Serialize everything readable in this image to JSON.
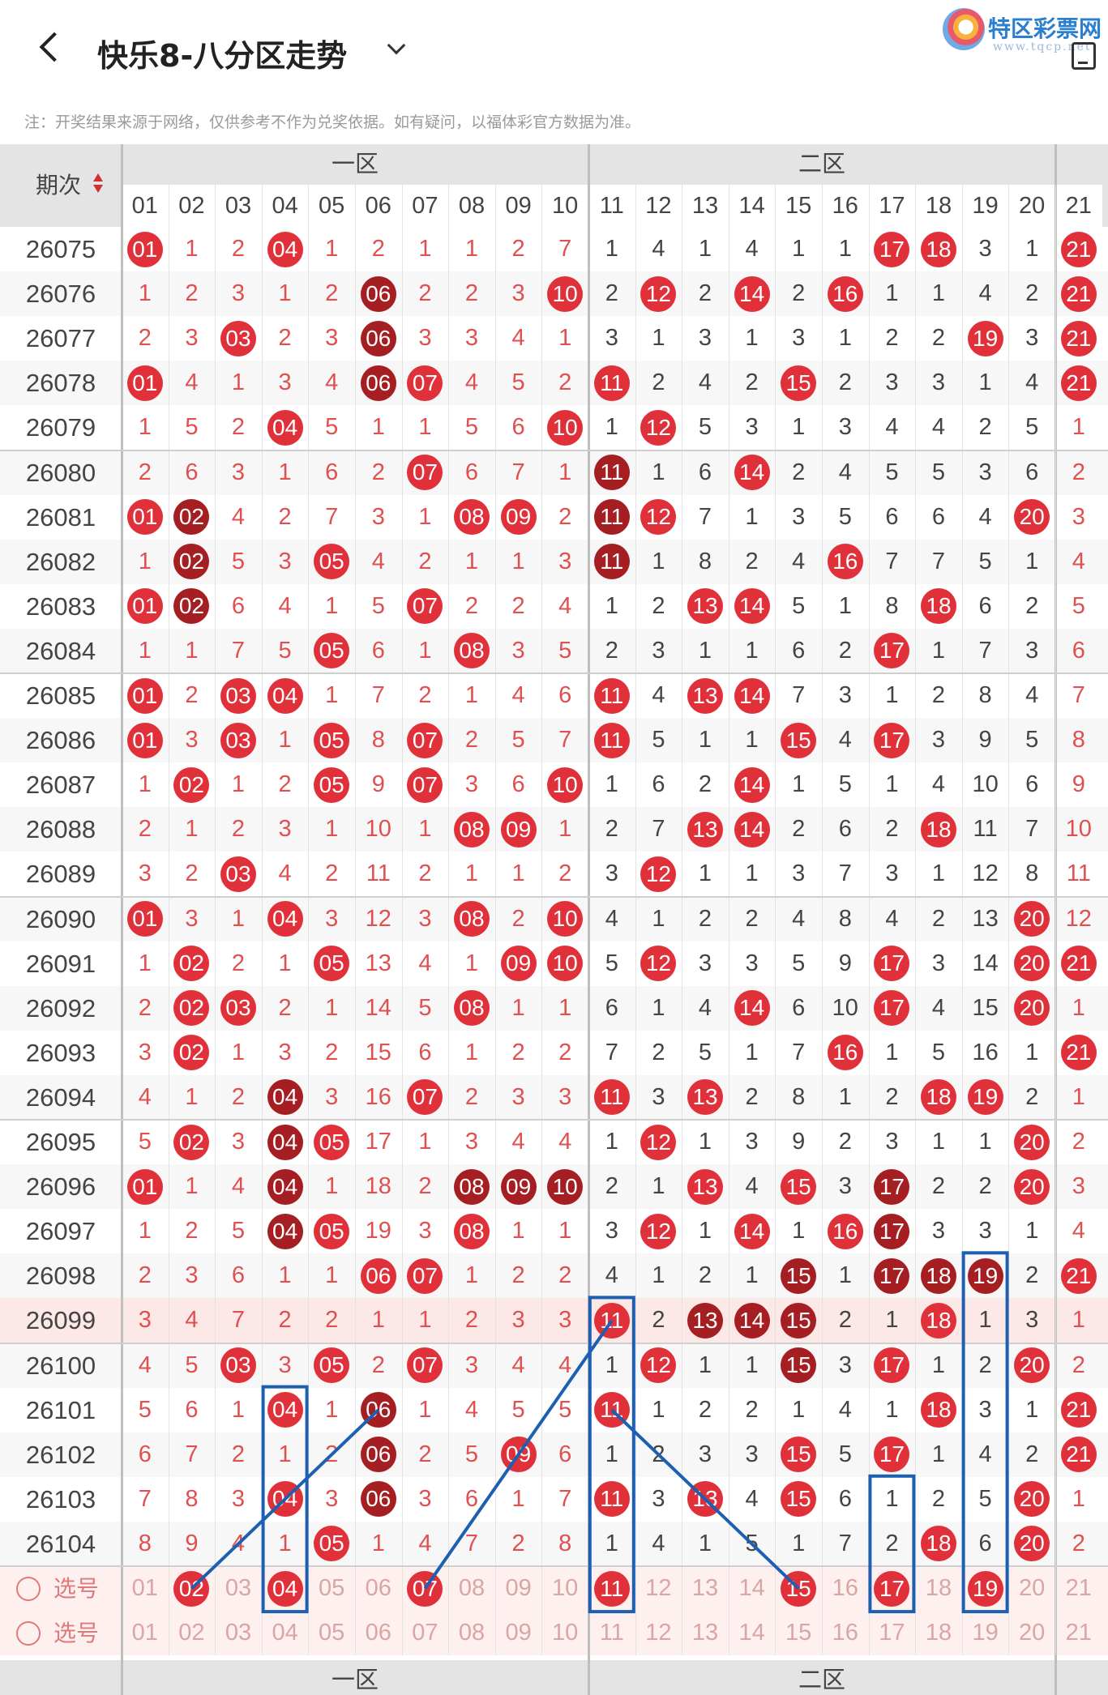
{
  "header": {
    "title": "快乐8-八分区走势",
    "note": "注：开奖结果来源于网络，仅供参考不作为兑奖依据。如有疑问，以福体彩官方数据为准。",
    "logo_text": "特区彩票网",
    "logo_url": "www.tqcp.net"
  },
  "table": {
    "period_header": "期次",
    "zones": [
      "一区",
      "二区"
    ],
    "columns": [
      "01",
      "02",
      "03",
      "04",
      "05",
      "06",
      "07",
      "08",
      "09",
      "10",
      "11",
      "12",
      "13",
      "14",
      "15",
      "16",
      "17",
      "18",
      "19",
      "20",
      "21"
    ],
    "rows": [
      {
        "period": "26075",
        "cells": [
          "01",
          "1",
          "2",
          "04",
          "1",
          "2",
          "1",
          "1",
          "2",
          "7",
          "1",
          "4",
          "1",
          "4",
          "1",
          "1",
          "17",
          "18",
          "3",
          "1",
          "21"
        ]
      },
      {
        "period": "26076",
        "cells": [
          "1",
          "2",
          "3",
          "1",
          "2",
          "06",
          "2",
          "2",
          "3",
          "10",
          "2",
          "12",
          "2",
          "14",
          "2",
          "16",
          "1",
          "1",
          "4",
          "2",
          "21"
        ]
      },
      {
        "period": "26077",
        "cells": [
          "2",
          "3",
          "03",
          "2",
          "3",
          "06",
          "3",
          "3",
          "4",
          "1",
          "3",
          "1",
          "3",
          "1",
          "3",
          "1",
          "2",
          "2",
          "19",
          "3",
          "21"
        ]
      },
      {
        "period": "26078",
        "cells": [
          "01",
          "4",
          "1",
          "3",
          "4",
          "06",
          "07",
          "4",
          "5",
          "2",
          "11",
          "2",
          "4",
          "2",
          "15",
          "2",
          "3",
          "3",
          "1",
          "4",
          "21"
        ]
      },
      {
        "period": "26079",
        "cells": [
          "1",
          "5",
          "2",
          "04",
          "5",
          "1",
          "1",
          "5",
          "6",
          "10",
          "1",
          "12",
          "5",
          "3",
          "1",
          "3",
          "4",
          "4",
          "2",
          "5",
          "1"
        ]
      },
      {
        "period": "26080",
        "cells": [
          "2",
          "6",
          "3",
          "1",
          "6",
          "2",
          "07",
          "6",
          "7",
          "1",
          "11",
          "1",
          "6",
          "14",
          "2",
          "4",
          "5",
          "5",
          "3",
          "6",
          "2"
        ]
      },
      {
        "period": "26081",
        "cells": [
          "01",
          "02",
          "4",
          "2",
          "7",
          "3",
          "1",
          "08",
          "09",
          "2",
          "11",
          "12",
          "7",
          "1",
          "3",
          "5",
          "6",
          "6",
          "4",
          "20",
          "3"
        ]
      },
      {
        "period": "26082",
        "cells": [
          "1",
          "02",
          "5",
          "3",
          "05",
          "4",
          "2",
          "1",
          "1",
          "3",
          "11",
          "1",
          "8",
          "2",
          "4",
          "16",
          "7",
          "7",
          "5",
          "1",
          "4"
        ]
      },
      {
        "period": "26083",
        "cells": [
          "01",
          "02",
          "6",
          "4",
          "1",
          "5",
          "07",
          "2",
          "2",
          "4",
          "1",
          "2",
          "13",
          "14",
          "5",
          "1",
          "8",
          "18",
          "6",
          "2",
          "5"
        ]
      },
      {
        "period": "26084",
        "cells": [
          "1",
          "1",
          "7",
          "5",
          "05",
          "6",
          "1",
          "08",
          "3",
          "5",
          "2",
          "3",
          "1",
          "1",
          "6",
          "2",
          "17",
          "1",
          "7",
          "3",
          "6"
        ]
      },
      {
        "period": "26085",
        "cells": [
          "01",
          "2",
          "03",
          "04",
          "1",
          "7",
          "2",
          "1",
          "4",
          "6",
          "11",
          "4",
          "13",
          "14",
          "7",
          "3",
          "1",
          "2",
          "8",
          "4",
          "7"
        ]
      },
      {
        "period": "26086",
        "cells": [
          "01",
          "3",
          "03",
          "1",
          "05",
          "8",
          "07",
          "2",
          "5",
          "7",
          "11",
          "5",
          "1",
          "1",
          "15",
          "4",
          "17",
          "3",
          "9",
          "5",
          "8"
        ]
      },
      {
        "period": "26087",
        "cells": [
          "1",
          "02",
          "1",
          "2",
          "05",
          "9",
          "07",
          "3",
          "6",
          "10",
          "1",
          "6",
          "2",
          "14",
          "1",
          "5",
          "1",
          "4",
          "10",
          "6",
          "9"
        ]
      },
      {
        "period": "26088",
        "cells": [
          "2",
          "1",
          "2",
          "3",
          "1",
          "10",
          "1",
          "08",
          "09",
          "1",
          "2",
          "7",
          "13",
          "14",
          "2",
          "6",
          "2",
          "18",
          "11",
          "7",
          "10"
        ]
      },
      {
        "period": "26089",
        "cells": [
          "3",
          "2",
          "03",
          "4",
          "2",
          "11",
          "2",
          "1",
          "1",
          "2",
          "3",
          "12",
          "1",
          "1",
          "3",
          "7",
          "3",
          "1",
          "12",
          "8",
          "11"
        ]
      },
      {
        "period": "26090",
        "cells": [
          "01",
          "3",
          "1",
          "04",
          "3",
          "12",
          "3",
          "08",
          "2",
          "10",
          "4",
          "1",
          "2",
          "2",
          "4",
          "8",
          "4",
          "2",
          "13",
          "20",
          "12"
        ]
      },
      {
        "period": "26091",
        "cells": [
          "1",
          "02",
          "2",
          "1",
          "05",
          "13",
          "4",
          "1",
          "09",
          "10",
          "5",
          "12",
          "3",
          "3",
          "5",
          "9",
          "17",
          "3",
          "14",
          "20",
          "21"
        ]
      },
      {
        "period": "26092",
        "cells": [
          "2",
          "02",
          "03",
          "2",
          "1",
          "14",
          "5",
          "08",
          "1",
          "1",
          "6",
          "1",
          "4",
          "14",
          "6",
          "10",
          "17",
          "4",
          "15",
          "20",
          "1"
        ]
      },
      {
        "period": "26093",
        "cells": [
          "3",
          "02",
          "1",
          "3",
          "2",
          "15",
          "6",
          "1",
          "2",
          "2",
          "7",
          "2",
          "5",
          "1",
          "7",
          "16",
          "1",
          "5",
          "16",
          "1",
          "21"
        ]
      },
      {
        "period": "26094",
        "cells": [
          "4",
          "1",
          "2",
          "04",
          "3",
          "16",
          "07",
          "2",
          "3",
          "3",
          "11",
          "3",
          "13",
          "2",
          "8",
          "1",
          "2",
          "18",
          "19",
          "2",
          "1"
        ]
      },
      {
        "period": "26095",
        "cells": [
          "5",
          "02",
          "3",
          "04",
          "05",
          "17",
          "1",
          "3",
          "4",
          "4",
          "1",
          "12",
          "1",
          "3",
          "9",
          "2",
          "3",
          "1",
          "1",
          "20",
          "2"
        ]
      },
      {
        "period": "26096",
        "cells": [
          "01",
          "1",
          "4",
          "04",
          "1",
          "18",
          "2",
          "08",
          "09",
          "10",
          "2",
          "1",
          "13",
          "4",
          "15",
          "3",
          "17",
          "2",
          "2",
          "20",
          "3"
        ]
      },
      {
        "period": "26097",
        "cells": [
          "1",
          "2",
          "5",
          "04",
          "05",
          "19",
          "3",
          "08",
          "1",
          "1",
          "3",
          "12",
          "1",
          "14",
          "1",
          "16",
          "17",
          "3",
          "3",
          "1",
          "4"
        ]
      },
      {
        "period": "26098",
        "cells": [
          "2",
          "3",
          "6",
          "1",
          "1",
          "06",
          "07",
          "1",
          "2",
          "2",
          "4",
          "1",
          "2",
          "1",
          "15",
          "1",
          "17",
          "18",
          "19",
          "2",
          "21"
        ]
      },
      {
        "period": "26099",
        "cells": [
          "3",
          "4",
          "7",
          "2",
          "2",
          "1",
          "1",
          "2",
          "3",
          "3",
          "11",
          "2",
          "13",
          "14",
          "15",
          "2",
          "1",
          "18",
          "1",
          "3",
          "1"
        ]
      },
      {
        "period": "26100",
        "cells": [
          "4",
          "5",
          "03",
          "3",
          "05",
          "2",
          "07",
          "3",
          "4",
          "4",
          "1",
          "12",
          "1",
          "1",
          "15",
          "3",
          "17",
          "1",
          "2",
          "20",
          "2"
        ]
      },
      {
        "period": "26101",
        "cells": [
          "5",
          "6",
          "1",
          "04",
          "1",
          "06",
          "1",
          "4",
          "5",
          "5",
          "11",
          "1",
          "2",
          "2",
          "1",
          "4",
          "1",
          "18",
          "3",
          "1",
          "21"
        ]
      },
      {
        "period": "26102",
        "cells": [
          "6",
          "7",
          "2",
          "1",
          "2",
          "06",
          "2",
          "5",
          "09",
          "6",
          "1",
          "2",
          "3",
          "3",
          "15",
          "5",
          "17",
          "1",
          "4",
          "2",
          "21"
        ]
      },
      {
        "period": "26103",
        "cells": [
          "7",
          "8",
          "3",
          "04",
          "3",
          "06",
          "3",
          "6",
          "1",
          "7",
          "11",
          "3",
          "13",
          "4",
          "15",
          "6",
          "1",
          "2",
          "5",
          "20",
          "1"
        ]
      },
      {
        "period": "26104",
        "cells": [
          "8",
          "9",
          "4",
          "1",
          "05",
          "1",
          "4",
          "7",
          "2",
          "8",
          "1",
          "4",
          "1",
          "5",
          "1",
          "7",
          "2",
          "18",
          "6",
          "20",
          "2"
        ]
      }
    ],
    "pick_rows": [
      {
        "label": "选号",
        "cells": [
          "01",
          "02",
          "03",
          "04",
          "05",
          "06",
          "07",
          "08",
          "09",
          "10",
          "11",
          "12",
          "13",
          "14",
          "15",
          "16",
          "17",
          "18",
          "19",
          "20",
          "21"
        ]
      },
      {
        "label": "选号",
        "cells": [
          "01",
          "02",
          "03",
          "04",
          "05",
          "06",
          "07",
          "08",
          "09",
          "10",
          "11",
          "12",
          "13",
          "14",
          "15",
          "16",
          "17",
          "18",
          "19",
          "20",
          "21"
        ]
      }
    ],
    "pick_selected": [
      "02",
      "04",
      "07",
      "11",
      "15",
      "17",
      "19"
    ]
  },
  "colors": {
    "ball_red": "#e0303a",
    "ball_dark": "#a51e22",
    "annotation_blue": "#1d5fb0"
  }
}
